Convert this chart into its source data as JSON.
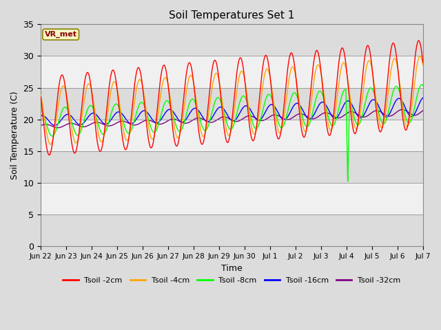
{
  "title": "Soil Temperatures Set 1",
  "xlabel": "Time",
  "ylabel": "Soil Temperature (C)",
  "ylim": [
    0,
    35
  ],
  "annotation_label": "VR_met",
  "xtick_labels": [
    "Jun 22",
    "Jun 23",
    "Jun 24",
    "Jun 25",
    "Jun 26",
    "Jun 27",
    "Jun 28",
    "Jun 29",
    "Jun 30",
    "Jul 1",
    "Jul 2",
    "Jul 3",
    "Jul 4",
    "Jul 5",
    "Jul 6",
    "Jul 7"
  ],
  "legend_labels": [
    "Tsoil -2cm",
    "Tsoil -4cm",
    "Tsoil -8cm",
    "Tsoil -16cm",
    "Tsoil -32cm"
  ],
  "line_colors": [
    "red",
    "orange",
    "lime",
    "blue",
    "purple"
  ],
  "bg_gray": "#dcdcdc",
  "bg_white": "#f0f0f0",
  "figsize": [
    6.4,
    4.8
  ],
  "dpi": 100
}
